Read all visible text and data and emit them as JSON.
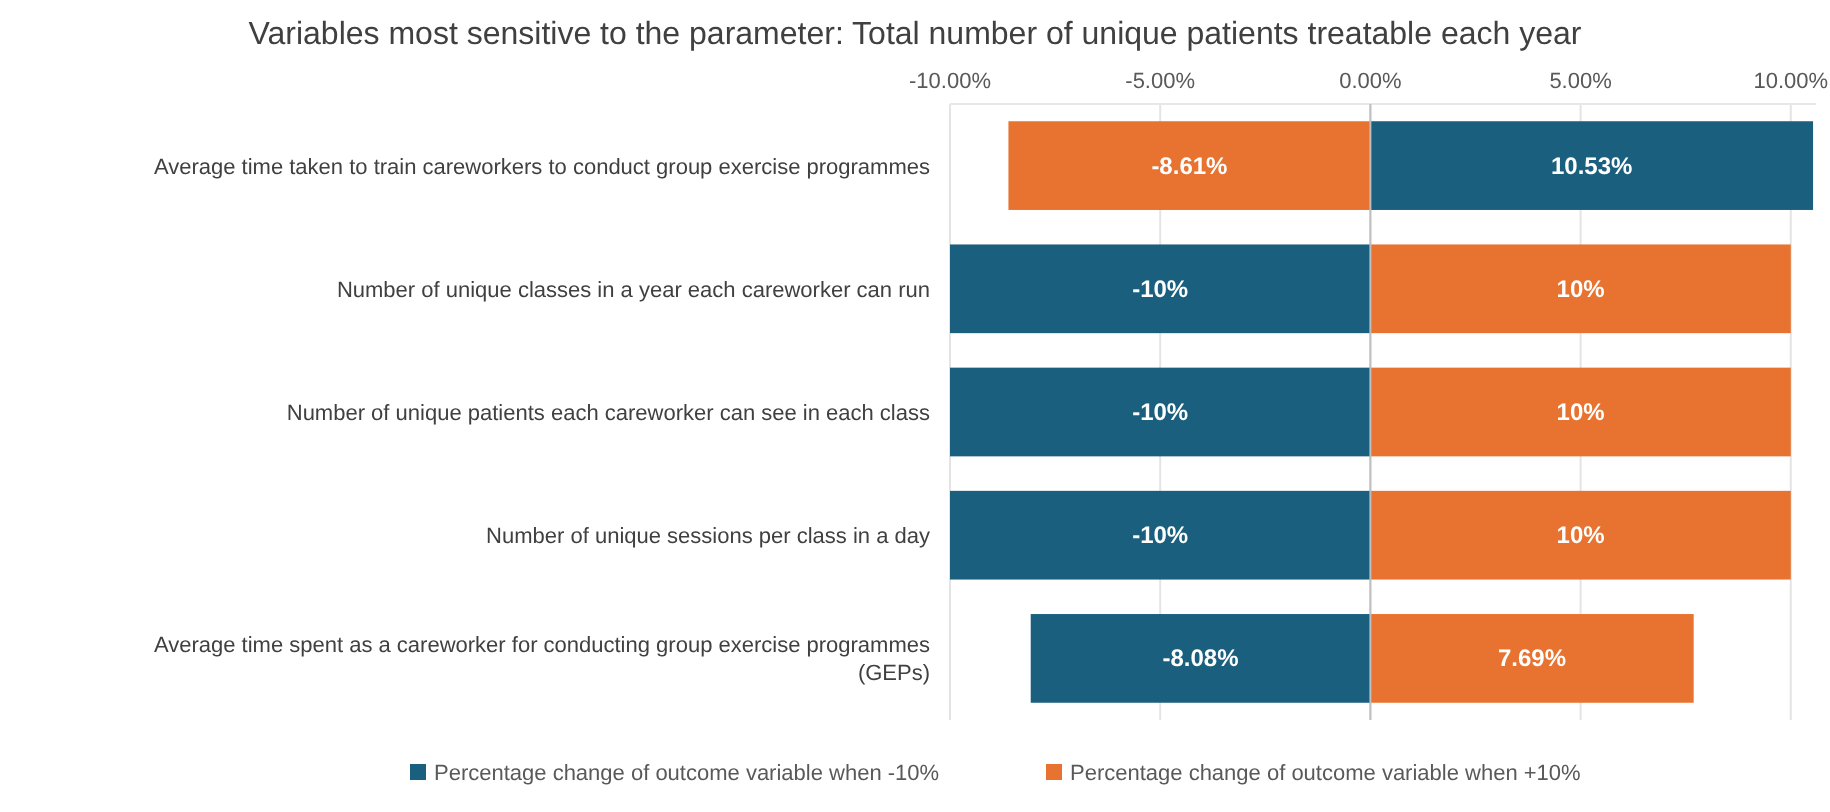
{
  "chart_data": {
    "type": "bar",
    "orientation": "horizontal",
    "title": "Variables most sensitive to the parameter: Total number of unique patients treatable each year",
    "categories": [
      "Average time taken to train careworkers to conduct group exercise programmes",
      "Number of unique classes in a year each careworker can run",
      "Number of unique patients each careworker can see in each class",
      "Number of unique sessions per class in a day",
      "Average time spent as a careworker for conducting group exercise programmes (GEPs)"
    ],
    "series": [
      {
        "name": "Percentage change of outcome variable when -10%",
        "color": "#1a5f7e",
        "values": [
          10.53,
          -10,
          -10,
          -10,
          -8.08
        ],
        "value_labels": [
          "10.53%",
          "-10%",
          "-10%",
          "-10%",
          "-8.08%"
        ]
      },
      {
        "name": "Percentage change of outcome variable when +10%",
        "color": "#e8722f",
        "values": [
          -8.61,
          10,
          10,
          10,
          7.69
        ],
        "value_labels": [
          "-8.61%",
          "10%",
          "10%",
          "10%",
          "7.69%"
        ]
      }
    ],
    "xlim": [
      -10,
      10.6
    ],
    "xticks": [
      {
        "value": -10,
        "label": "-10.00%"
      },
      {
        "value": -5,
        "label": "-5.00%"
      },
      {
        "value": 0,
        "label": "0.00%"
      },
      {
        "value": 5,
        "label": "5.00%"
      },
      {
        "value": 10,
        "label": "10.00%"
      }
    ],
    "stacked": true,
    "grid": "x",
    "legend": "bottom"
  }
}
